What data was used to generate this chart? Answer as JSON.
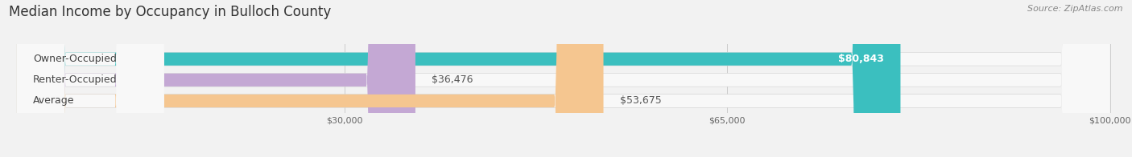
{
  "title": "Median Income by Occupancy in Bulloch County",
  "source": "Source: ZipAtlas.com",
  "categories": [
    "Owner-Occupied",
    "Renter-Occupied",
    "Average"
  ],
  "values": [
    80843,
    36476,
    53675
  ],
  "bar_colors": [
    "#3BBFBF",
    "#C4A8D4",
    "#F5C690"
  ],
  "value_labels": [
    "$80,843",
    "$36,476",
    "$53,675"
  ],
  "xmax": 100000,
  "xticks": [
    30000,
    65000,
    100000
  ],
  "xtick_labels": [
    "$30,000",
    "$65,000",
    "$100,000"
  ],
  "background_color": "#f2f2f2",
  "bar_bg_color": "#e4e4e4",
  "bar_inner_bg": "#ffffff",
  "title_fontsize": 12,
  "source_fontsize": 8,
  "label_fontsize": 9,
  "value_fontsize": 9,
  "bar_height": 0.62
}
